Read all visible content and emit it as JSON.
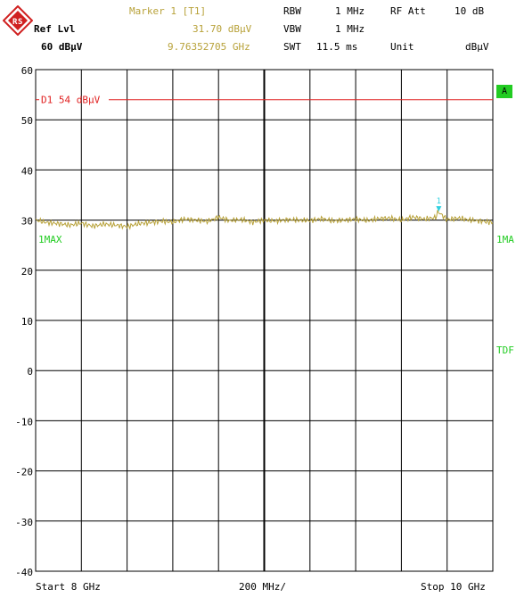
{
  "header": {
    "ref_lvl_label": "Ref Lvl",
    "ref_lvl_value": "60 dBµV",
    "marker_title": "Marker 1 [T1]",
    "marker_level": "31.70 dBµV",
    "marker_freq": "9.76352705 GHz",
    "rbw_label": "RBW",
    "rbw_value": "1 MHz",
    "vbw_label": "VBW",
    "vbw_value": "1 MHz",
    "swt_label": "SWT",
    "swt_value": "11.5 ms",
    "rf_att_label": "RF Att",
    "rf_att_value": "10 dB",
    "unit_label": "Unit",
    "unit_value": "dBµV"
  },
  "side": {
    "a_badge": "A",
    "left_trace_label": "1MAX",
    "right_trace_label": "1MA",
    "right_tdf_label": "TDF"
  },
  "footer": {
    "start": "Start 8 GHz",
    "span": "200 MHz/",
    "stop": "Stop 10 GHz"
  },
  "colors": {
    "trace": "#b8a23a",
    "limit_line": "#e02020",
    "marker": "#30d0e0",
    "badge": "#22cc22"
  },
  "chart_data": {
    "type": "line",
    "x_unit": "GHz",
    "y_unit": "dBµV",
    "xlim": [
      8,
      10
    ],
    "ylim": [
      -40,
      60
    ],
    "y_ticks": [
      60,
      50,
      40,
      30,
      20,
      10,
      0,
      -10,
      -20,
      -30,
      -40
    ],
    "grid": true,
    "display_line": {
      "label": "D1 54 dBµV",
      "y": 54
    },
    "marker": {
      "label": "1",
      "x": 9.76352705,
      "y": 31.7
    },
    "series": [
      {
        "x": [
          8.0,
          8.05,
          8.1,
          8.15,
          8.2,
          8.25,
          8.3,
          8.35,
          8.4,
          8.45,
          8.5,
          8.55,
          8.6,
          8.65,
          8.7,
          8.75,
          8.8,
          8.85,
          8.9,
          8.95,
          9.0,
          9.05,
          9.1,
          9.15,
          9.2,
          9.25,
          9.3,
          9.35,
          9.4,
          9.45,
          9.5,
          9.55,
          9.6,
          9.65,
          9.7,
          9.75,
          9.76,
          9.8,
          9.85,
          9.9,
          9.95,
          10.0
        ],
        "y": [
          30.0,
          29.5,
          29.3,
          29.0,
          29.4,
          28.8,
          29.2,
          29.0,
          28.7,
          29.3,
          29.5,
          29.8,
          29.6,
          30.2,
          30.0,
          29.7,
          30.6,
          29.9,
          30.1,
          29.6,
          30.0,
          29.8,
          30.1,
          30.0,
          29.9,
          30.3,
          29.8,
          30.0,
          30.2,
          29.9,
          30.3,
          30.4,
          30.0,
          30.6,
          30.2,
          30.5,
          31.7,
          30.1,
          30.4,
          30.0,
          29.8,
          29.5
        ]
      }
    ]
  }
}
